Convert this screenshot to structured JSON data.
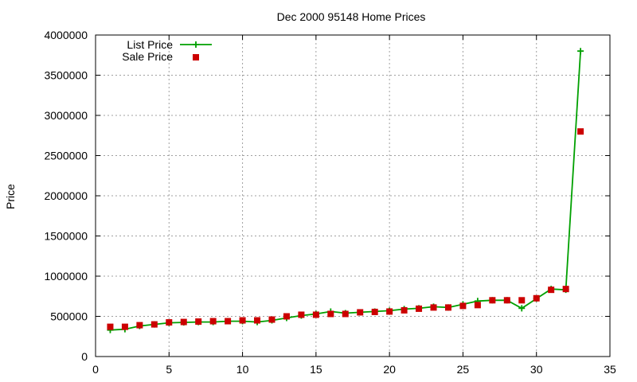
{
  "chart_data": {
    "type": "line",
    "title": "Dec 2000 95148 Home Prices",
    "xlabel": "",
    "ylabel": "Price",
    "xlim": [
      0,
      35
    ],
    "ylim": [
      0,
      4000000
    ],
    "x_ticks": [
      "0",
      "5",
      "10",
      "15",
      "20",
      "25",
      "30",
      "35"
    ],
    "y_ticks": [
      "0",
      "500000",
      "1000000",
      "1500000",
      "2000000",
      "2500000",
      "3000000",
      "3500000",
      "4000000"
    ],
    "grid": true,
    "legend_position": "top-left",
    "series": [
      {
        "name": "List Price",
        "style": "line+cross",
        "color": "#00a000",
        "x": [
          1,
          2,
          3,
          4,
          5,
          6,
          7,
          8,
          9,
          10,
          11,
          12,
          13,
          14,
          15,
          16,
          17,
          18,
          19,
          20,
          21,
          22,
          23,
          24,
          25,
          26,
          27,
          28,
          29,
          30,
          31,
          32,
          33
        ],
        "values": [
          330000,
          340000,
          380000,
          400000,
          420000,
          425000,
          430000,
          430000,
          440000,
          440000,
          430000,
          450000,
          480000,
          510000,
          530000,
          560000,
          540000,
          550000,
          560000,
          570000,
          590000,
          600000,
          620000,
          610000,
          650000,
          690000,
          700000,
          700000,
          600000,
          720000,
          840000,
          830000,
          3800000
        ]
      },
      {
        "name": "Sale Price",
        "style": "points",
        "color": "#cc0000",
        "x": [
          1,
          2,
          3,
          4,
          5,
          6,
          7,
          8,
          9,
          10,
          11,
          12,
          13,
          14,
          15,
          16,
          17,
          18,
          19,
          20,
          21,
          22,
          23,
          24,
          25,
          26,
          27,
          28,
          29,
          30,
          31,
          32,
          33
        ],
        "values": [
          370000,
          370000,
          390000,
          400000,
          425000,
          430000,
          435000,
          440000,
          440000,
          450000,
          450000,
          460000,
          500000,
          520000,
          520000,
          530000,
          530000,
          550000,
          555000,
          560000,
          575000,
          595000,
          610000,
          610000,
          630000,
          640000,
          700000,
          700000,
          700000,
          725000,
          830000,
          840000,
          2800000
        ]
      }
    ]
  }
}
